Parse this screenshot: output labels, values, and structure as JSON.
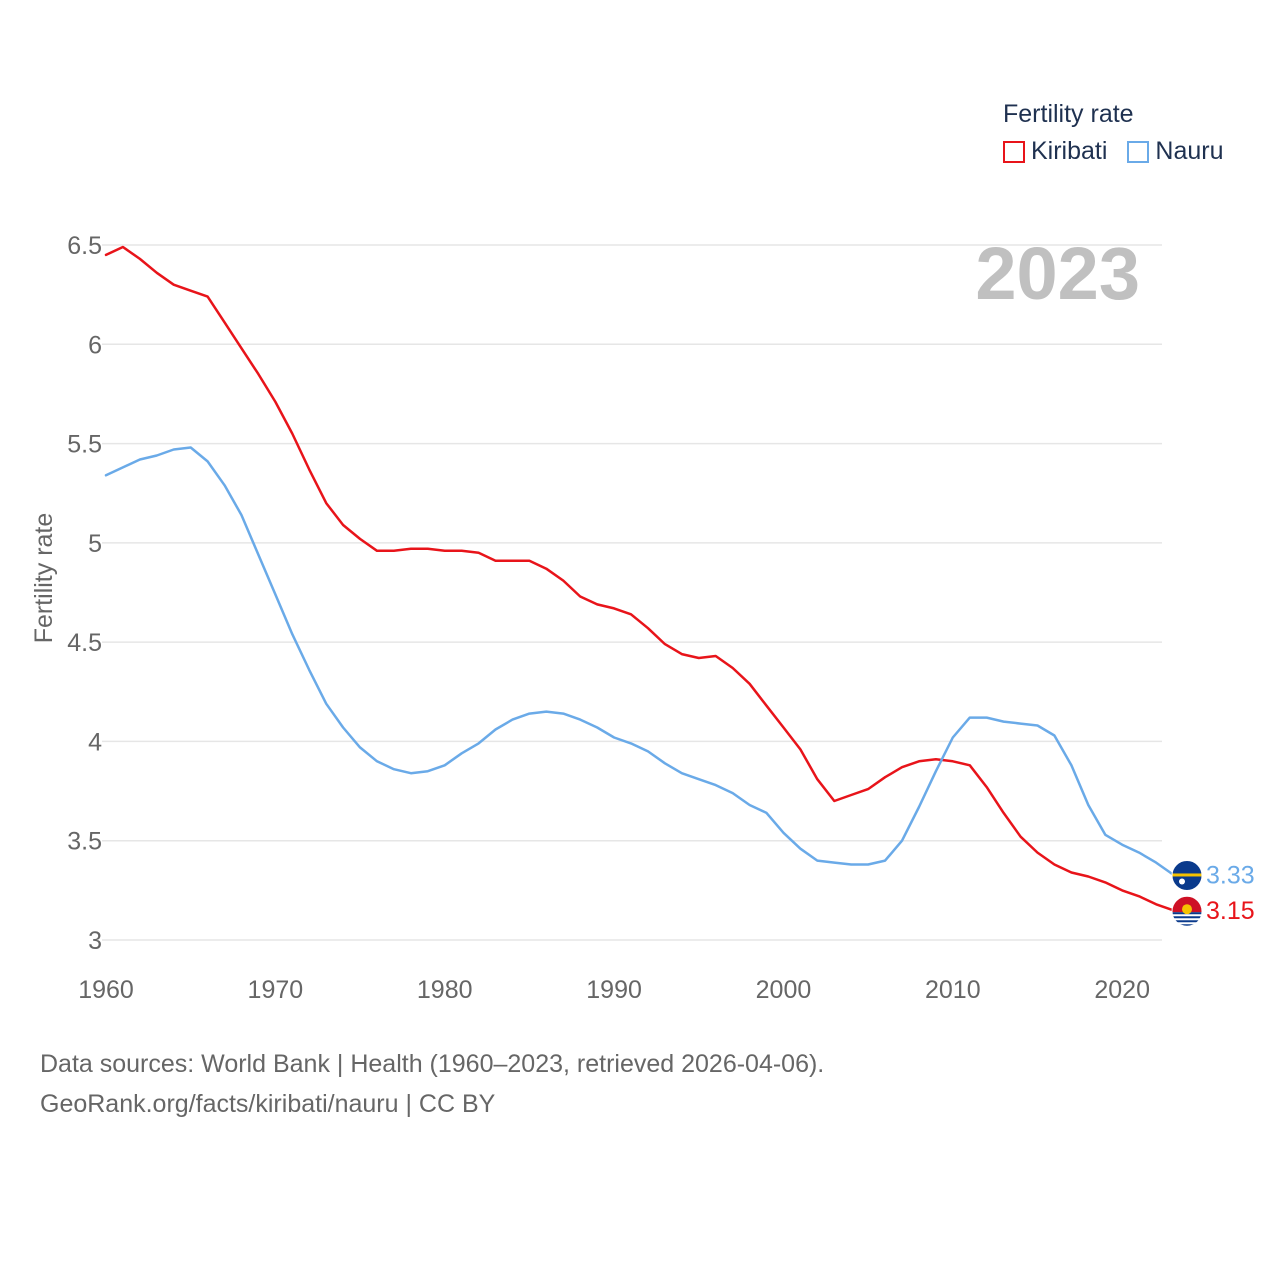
{
  "legend": {
    "title": "Fertility rate",
    "items": [
      {
        "label": "Kiribati",
        "color": "#e8141a"
      },
      {
        "label": "Nauru",
        "color": "#6aaae8"
      }
    ]
  },
  "year_watermark": "2023",
  "source": {
    "line1": "Data sources: World Bank | Health (1960–2023, retrieved 2026-04-06).",
    "line2": "GeoRank.org/facts/kiribati/nauru | CC BY"
  },
  "chart_data": {
    "type": "line",
    "title": "Fertility rate",
    "xlabel": "",
    "ylabel": "Fertility rate",
    "xlim": [
      1960,
      2023
    ],
    "ylim": [
      3,
      6.5
    ],
    "x_ticks": [
      "1960",
      "1970",
      "1980",
      "1990",
      "2000",
      "2010",
      "2020"
    ],
    "y_ticks": [
      "3",
      "3.5",
      "4",
      "4.5",
      "5",
      "5.5",
      "6",
      "6.5"
    ],
    "grid": true,
    "legend_position": "top-right",
    "x": [
      1960,
      1961,
      1962,
      1963,
      1964,
      1965,
      1966,
      1967,
      1968,
      1969,
      1970,
      1971,
      1972,
      1973,
      1974,
      1975,
      1976,
      1977,
      1978,
      1979,
      1980,
      1981,
      1982,
      1983,
      1984,
      1985,
      1986,
      1987,
      1988,
      1989,
      1990,
      1991,
      1992,
      1993,
      1994,
      1995,
      1996,
      1997,
      1998,
      1999,
      2000,
      2001,
      2002,
      2003,
      2004,
      2005,
      2006,
      2007,
      2008,
      2009,
      2010,
      2011,
      2012,
      2013,
      2014,
      2015,
      2016,
      2017,
      2018,
      2019,
      2020,
      2021,
      2022,
      2023
    ],
    "series": [
      {
        "name": "Kiribati",
        "color": "#e8141a",
        "end_label": "3.15",
        "values": [
          6.45,
          6.49,
          6.43,
          6.36,
          6.3,
          6.27,
          6.24,
          6.11,
          5.98,
          5.85,
          5.71,
          5.55,
          5.37,
          5.2,
          5.09,
          5.02,
          4.96,
          4.96,
          4.97,
          4.97,
          4.96,
          4.96,
          4.95,
          4.91,
          4.91,
          4.91,
          4.87,
          4.81,
          4.73,
          4.69,
          4.67,
          4.64,
          4.57,
          4.49,
          4.44,
          4.42,
          4.43,
          4.37,
          4.29,
          4.18,
          4.07,
          3.96,
          3.81,
          3.7,
          3.73,
          3.76,
          3.82,
          3.87,
          3.9,
          3.91,
          3.9,
          3.88,
          3.77,
          3.64,
          3.52,
          3.44,
          3.38,
          3.34,
          3.32,
          3.29,
          3.25,
          3.22,
          3.18,
          3.15
        ]
      },
      {
        "name": "Nauru",
        "color": "#6aaae8",
        "end_label": "3.33",
        "values": [
          5.34,
          5.38,
          5.42,
          5.44,
          5.47,
          5.48,
          5.41,
          5.29,
          5.14,
          4.94,
          4.74,
          4.54,
          4.36,
          4.19,
          4.07,
          3.97,
          3.9,
          3.86,
          3.84,
          3.85,
          3.88,
          3.94,
          3.99,
          4.06,
          4.11,
          4.14,
          4.15,
          4.14,
          4.11,
          4.07,
          4.02,
          3.99,
          3.95,
          3.89,
          3.84,
          3.81,
          3.78,
          3.74,
          3.68,
          3.64,
          3.54,
          3.46,
          3.4,
          3.39,
          3.38,
          3.38,
          3.4,
          3.5,
          3.67,
          3.85,
          4.02,
          4.12,
          4.12,
          4.1,
          4.09,
          4.08,
          4.03,
          3.88,
          3.68,
          3.53,
          3.48,
          3.44,
          3.39,
          3.33
        ]
      }
    ]
  }
}
